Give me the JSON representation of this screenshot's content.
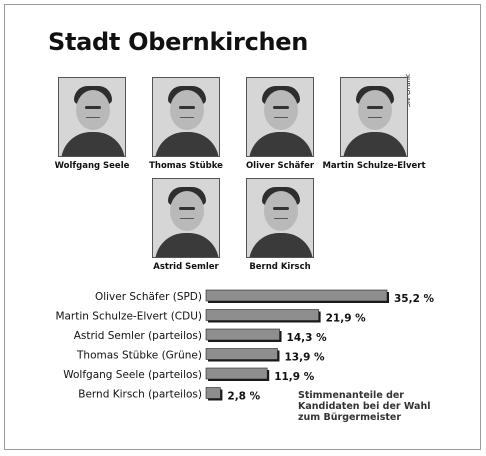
{
  "title": "Stadt Obernkirchen",
  "credit": "SN-Grafik",
  "caption": [
    "Stimmenanteile der",
    "Kandidaten bei der Wahl",
    "zum Bürgermeister"
  ],
  "candidates": [
    {
      "name": "Wolfgang Seele"
    },
    {
      "name": "Thomas Stübke"
    },
    {
      "name": "Oliver Schäfer"
    },
    {
      "name": "Martin Schulze-Elvert"
    },
    {
      "name": "Astrid Semler"
    },
    {
      "name": "Bernd Kirsch"
    }
  ],
  "chart_data": {
    "type": "bar",
    "orientation": "horizontal",
    "categories": [
      "Oliver Schäfer (SPD)",
      "Martin Schulze-Elvert (CDU)",
      "Astrid Semler (parteilos)",
      "Thomas Stübke (Grüne)",
      "Wolfgang Seele (parteilos)",
      "Bernd Kirsch (parteilos)"
    ],
    "values": [
      35.2,
      21.9,
      14.3,
      13.9,
      11.9,
      2.8
    ],
    "value_labels": [
      "35,2 %",
      "21,9 %",
      "14,3 %",
      "13,9 %",
      "11,9 %",
      "2,8 %"
    ],
    "title": "",
    "xlabel": "",
    "ylabel": "",
    "xlim": [
      0,
      35.2
    ],
    "grid": false,
    "colors": {
      "bar_fill": "#8e8e8e",
      "bar_shadow": "#1a1a1a"
    }
  }
}
